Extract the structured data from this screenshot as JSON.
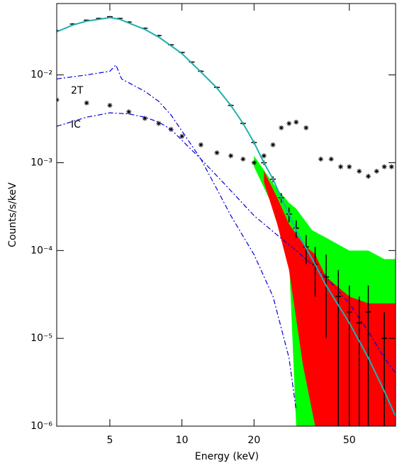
{
  "chart_data": {
    "type": "line",
    "x_label": "Energy (keV)",
    "y_label": "Counts/s/keV",
    "xscale": "log",
    "yscale": "log",
    "xlim": [
      3,
      78
    ],
    "ylim": [
      1e-06,
      0.065
    ],
    "xticks": [
      5,
      10,
      20,
      50
    ],
    "yticks": [
      {
        "value": 1e-06,
        "label": "10⁻⁶"
      },
      {
        "value": 1e-05,
        "label": "10⁻⁵"
      },
      {
        "value": 0.0001,
        "label": "10⁻⁴"
      },
      {
        "value": 0.001,
        "label": "10⁻³"
      },
      {
        "value": 0.01,
        "label": "10⁻²"
      }
    ],
    "annotations": [
      {
        "text": "2T"
      },
      {
        "text": "IC"
      }
    ],
    "series": [
      {
        "style": "band",
        "color": "#00ff00",
        "x": [
          20,
          25,
          28,
          30,
          35,
          40,
          50,
          60,
          70,
          78
        ],
        "values": [
          0.0012,
          0.0005,
          0.00035,
          0.0003,
          0.00017,
          0.00014,
          0.0001,
          0.0001,
          8e-05,
          8e-05
        ],
        "lower": [
          0.0009,
          0.00025,
          8e-05,
          1e-06,
          1e-06,
          1e-06,
          1e-06,
          1e-06,
          1e-06,
          1e-06
        ]
      },
      {
        "style": "band",
        "color": "#ff0000",
        "x": [
          22,
          25,
          28,
          32,
          36,
          40,
          50,
          60,
          70,
          78
        ],
        "values": [
          0.0008,
          0.0004,
          0.0002,
          0.00012,
          9e-05,
          5e-05,
          3e-05,
          2.5e-05,
          2.5e-05,
          2.5e-05
        ],
        "lower": [
          0.0006,
          0.0002,
          6e-05,
          5e-06,
          1e-06,
          1e-06,
          1e-06,
          1e-06,
          1e-06,
          1e-06
        ]
      },
      {
        "style": "asterisk",
        "color": "#000000",
        "x": [
          3,
          4,
          5,
          6,
          7,
          8,
          9,
          10,
          12,
          14,
          16,
          18,
          20,
          22,
          24,
          26,
          28,
          30,
          33,
          38,
          42,
          46,
          50,
          55,
          60,
          65,
          70,
          75
        ],
        "values": [
          0.0052,
          0.0048,
          0.0045,
          0.0038,
          0.0032,
          0.0028,
          0.0024,
          0.002,
          0.0016,
          0.0013,
          0.0012,
          0.0011,
          0.001,
          0.0012,
          0.0016,
          0.0025,
          0.0028,
          0.0029,
          0.0025,
          0.0011,
          0.0011,
          0.0009,
          0.0009,
          0.0008,
          0.0007,
          0.0008,
          0.0009,
          0.0009
        ]
      },
      {
        "style": "dashdot",
        "color": "#0000dd",
        "x": [
          3,
          4,
          5,
          5.3,
          5.6,
          7,
          8,
          9,
          10,
          12,
          14,
          16,
          20,
          24,
          28,
          30
        ],
        "values": [
          0.009,
          0.01,
          0.011,
          0.013,
          0.009,
          0.0065,
          0.005,
          0.0035,
          0.0023,
          0.0011,
          0.0005,
          0.00025,
          9e-05,
          3e-05,
          6e-06,
          1.5e-06
        ]
      },
      {
        "style": "dashdot",
        "color": "#0000dd",
        "x": [
          3,
          4,
          5,
          6,
          7,
          8,
          9,
          10,
          12,
          15,
          20,
          25,
          30,
          40,
          50,
          60,
          70,
          78
        ],
        "values": [
          0.0026,
          0.0033,
          0.0037,
          0.0036,
          0.0033,
          0.0029,
          0.0024,
          0.0018,
          0.0011,
          0.00058,
          0.00025,
          0.00015,
          0.0001,
          5e-05,
          2.5e-05,
          1.2e-05,
          6e-06,
          4e-06
        ]
      },
      {
        "style": "errorbar",
        "color": "#000000",
        "x": [
          3,
          3.5,
          4,
          4.5,
          5,
          5.5,
          6,
          7,
          8,
          9,
          10,
          11,
          12,
          14,
          16,
          18,
          20,
          22,
          24,
          26,
          28,
          30,
          33,
          36,
          40,
          45,
          50,
          55,
          60,
          70
        ],
        "values": [
          0.032,
          0.038,
          0.042,
          0.044,
          0.046,
          0.044,
          0.04,
          0.034,
          0.028,
          0.022,
          0.018,
          0.014,
          0.011,
          0.0072,
          0.0045,
          0.0028,
          0.0017,
          0.001,
          0.00065,
          0.0004,
          0.00026,
          0.00018,
          0.00011,
          7e-05,
          5e-05,
          3e-05,
          2e-05,
          1.5e-05,
          2e-05,
          1e-05
        ],
        "errors": [
          0.0008,
          0.0008,
          0.0008,
          0.0008,
          0.0008,
          0.0008,
          0.0008,
          0.0007,
          0.0006,
          0.0005,
          0.0004,
          0.0003,
          0.0003,
          0.0002,
          0.00015,
          0.0001,
          8e-05,
          6e-05,
          5e-05,
          5e-05,
          5e-05,
          4e-05,
          4e-05,
          4e-05,
          4e-05,
          3e-05,
          2e-05,
          1.5e-05,
          2e-05,
          1e-05
        ]
      },
      {
        "style": "line",
        "color": "#20b0b0",
        "x": [
          3,
          3.5,
          4,
          4.5,
          5,
          5.5,
          6,
          7,
          8,
          9,
          10,
          12,
          14,
          16,
          18,
          20,
          22,
          24,
          26,
          28,
          30,
          35,
          40,
          50,
          60,
          70,
          78
        ],
        "values": [
          0.031,
          0.037,
          0.041,
          0.043,
          0.045,
          0.043,
          0.039,
          0.033,
          0.027,
          0.0215,
          0.0175,
          0.0108,
          0.0071,
          0.0045,
          0.0028,
          0.0017,
          0.001,
          0.00065,
          0.0004,
          0.00026,
          0.00017,
          8e-05,
          4e-05,
          1.5e-05,
          6e-06,
          2.5e-06,
          1.3e-06
        ]
      }
    ]
  }
}
